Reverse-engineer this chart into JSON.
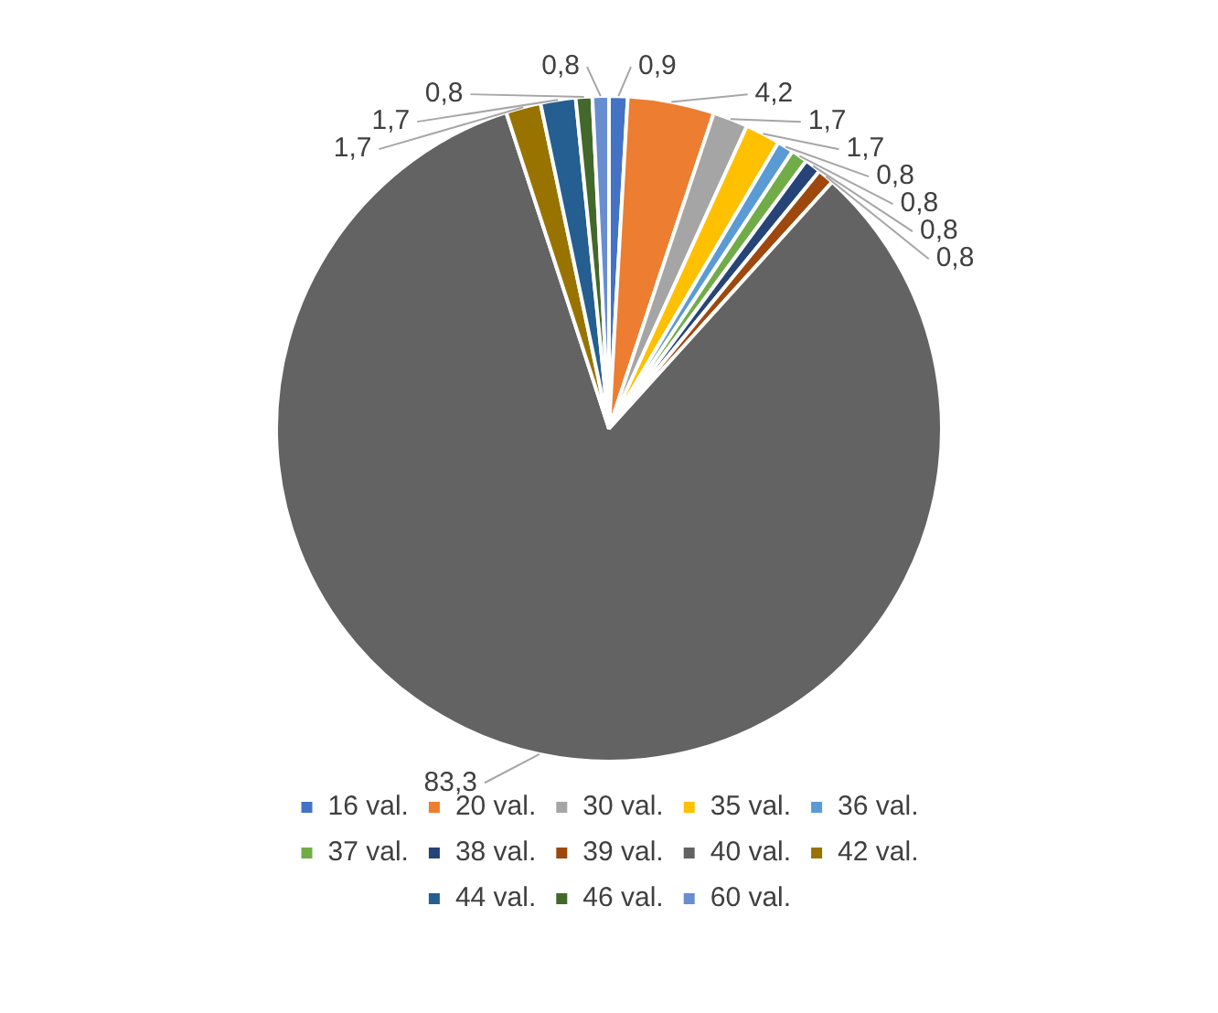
{
  "chart_data": {
    "type": "pie",
    "categories": [
      "16 val.",
      "20 val.",
      "30 val.",
      "35 val.",
      "36 val.",
      "37 val.",
      "38 val.",
      "39 val.",
      "40 val.",
      "42 val.",
      "44 val.",
      "46 val.",
      "60 val."
    ],
    "values": [
      0.9,
      4.2,
      1.7,
      1.7,
      0.8,
      0.8,
      0.8,
      0.8,
      83.3,
      1.7,
      1.7,
      0.8,
      0.8
    ],
    "colors": [
      "#4472c4",
      "#ed7d31",
      "#a5a5a5",
      "#ffc000",
      "#5b9bd5",
      "#70ad47",
      "#264478",
      "#9e480e",
      "#636363",
      "#997300",
      "#255e91",
      "#43682b",
      "#698ed0"
    ],
    "value_labels": [
      "0,9",
      "4,2",
      "1,7",
      "1,7",
      "0,8",
      "0,8",
      "0,8",
      "0,8",
      "83,3",
      "1,7",
      "1,7",
      "0,8",
      "0,8"
    ],
    "legend": "bottom"
  }
}
